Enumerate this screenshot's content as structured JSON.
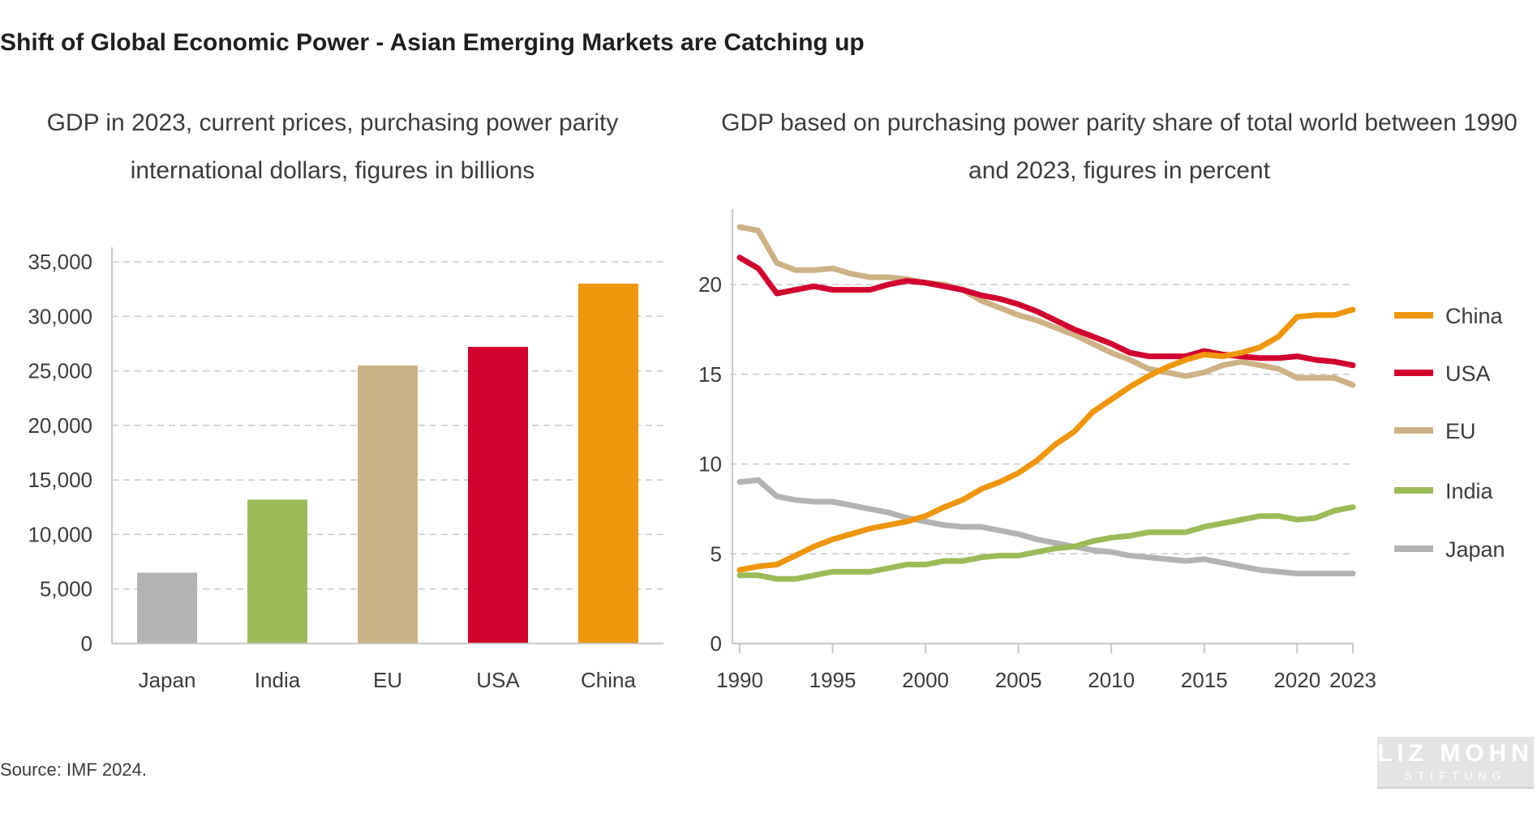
{
  "title": "Shift of Global Economic Power - Asian Emerging Markets are Catching up",
  "source": "Source: IMF 2024.",
  "logo": {
    "name": "LIZ MOHN",
    "sub": "STIFTUNG"
  },
  "chart_data": [
    {
      "type": "bar",
      "title": "GDP in 2023, current prices, purchasing power parity international dollars, figures in billions",
      "categories": [
        "Japan",
        "India",
        "EU",
        "USA",
        "China"
      ],
      "values": [
        6500,
        13200,
        25500,
        27200,
        33000
      ],
      "colors": [
        "#b3b3b3",
        "#9bbb59",
        "#cdb285",
        "#d2002e",
        "#ef960c"
      ],
      "ylim": [
        0,
        35000
      ],
      "yticks": [
        0,
        5000,
        10000,
        15000,
        20000,
        25000,
        30000,
        35000
      ],
      "ytick_labels": [
        "0",
        "5,000",
        "10,000",
        "15,000",
        "20,000",
        "25,000",
        "30,000",
        "35,000"
      ],
      "grid": true
    },
    {
      "type": "line",
      "title": "GDP based on purchasing power parity share of total world between 1990 and 2023, figures in percent",
      "x": [
        1990,
        1991,
        1992,
        1993,
        1994,
        1995,
        1996,
        1997,
        1998,
        1999,
        2000,
        2001,
        2002,
        2003,
        2004,
        2005,
        2006,
        2007,
        2008,
        2009,
        2010,
        2011,
        2012,
        2013,
        2014,
        2015,
        2016,
        2017,
        2018,
        2019,
        2020,
        2021,
        2022,
        2023
      ],
      "xlim": [
        1990,
        2023
      ],
      "xticks": [
        1990,
        1995,
        2000,
        2005,
        2010,
        2015,
        2020,
        2023
      ],
      "ylim": [
        0,
        24
      ],
      "yticks": [
        0,
        5,
        10,
        15,
        20
      ],
      "grid": true,
      "legend_position": "right",
      "series": [
        {
          "name": "China",
          "color": "#ef960c",
          "values": [
            4.1,
            4.3,
            4.4,
            4.9,
            5.4,
            5.8,
            6.1,
            6.4,
            6.6,
            6.8,
            7.1,
            7.6,
            8.0,
            8.6,
            9.0,
            9.5,
            10.2,
            11.1,
            11.8,
            12.9,
            13.6,
            14.3,
            14.9,
            15.4,
            15.8,
            16.1,
            16.0,
            16.2,
            16.5,
            17.1,
            18.2,
            18.3,
            18.3,
            18.6
          ]
        },
        {
          "name": "USA",
          "color": "#d2002e",
          "values": [
            21.5,
            20.9,
            19.5,
            19.7,
            19.9,
            19.7,
            19.7,
            19.7,
            20.0,
            20.2,
            20.1,
            19.9,
            19.7,
            19.4,
            19.2,
            18.9,
            18.5,
            18.0,
            17.5,
            17.1,
            16.7,
            16.2,
            16.0,
            16.0,
            16.0,
            16.3,
            16.1,
            16.0,
            15.9,
            15.9,
            16.0,
            15.8,
            15.7,
            15.5
          ]
        },
        {
          "name": "EU",
          "color": "#cdb285",
          "values": [
            23.2,
            23.0,
            21.2,
            20.8,
            20.8,
            20.9,
            20.6,
            20.4,
            20.4,
            20.3,
            20.1,
            20.0,
            19.7,
            19.1,
            18.7,
            18.3,
            18.0,
            17.6,
            17.2,
            16.7,
            16.2,
            15.8,
            15.3,
            15.1,
            14.9,
            15.1,
            15.5,
            15.7,
            15.5,
            15.3,
            14.8,
            14.8,
            14.8,
            14.4
          ]
        },
        {
          "name": "India",
          "color": "#9bbb59",
          "values": [
            3.8,
            3.8,
            3.6,
            3.6,
            3.8,
            4.0,
            4.0,
            4.0,
            4.2,
            4.4,
            4.4,
            4.6,
            4.6,
            4.8,
            4.9,
            4.9,
            5.1,
            5.3,
            5.4,
            5.7,
            5.9,
            6.0,
            6.2,
            6.2,
            6.2,
            6.5,
            6.7,
            6.9,
            7.1,
            7.1,
            6.9,
            7.0,
            7.4,
            7.6
          ]
        },
        {
          "name": "Japan",
          "color": "#b3b3b3",
          "values": [
            9.0,
            9.1,
            8.2,
            8.0,
            7.9,
            7.9,
            7.7,
            7.5,
            7.3,
            7.0,
            6.8,
            6.6,
            6.5,
            6.5,
            6.3,
            6.1,
            5.8,
            5.6,
            5.4,
            5.2,
            5.1,
            4.9,
            4.8,
            4.7,
            4.6,
            4.7,
            4.5,
            4.3,
            4.1,
            4.0,
            3.9,
            3.9,
            3.9,
            3.9
          ]
        }
      ]
    }
  ]
}
